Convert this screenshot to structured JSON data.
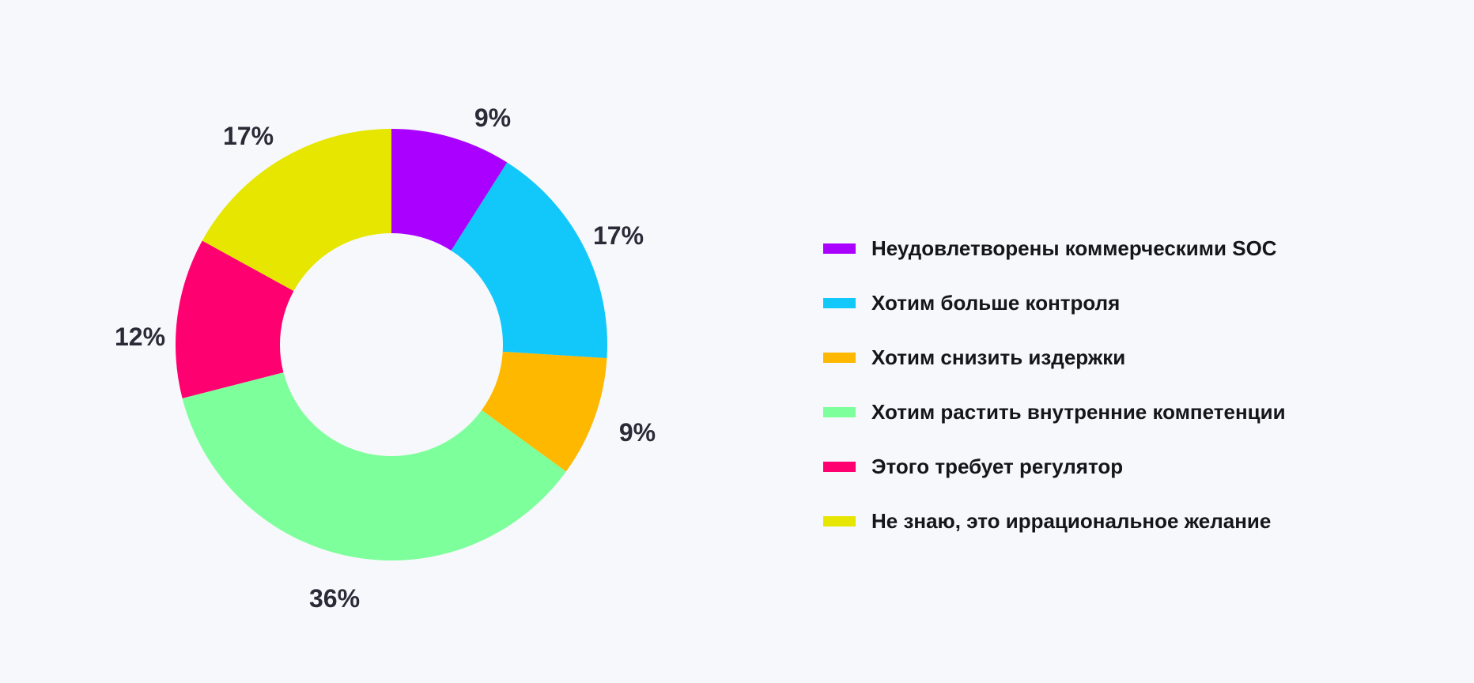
{
  "chart_data": {
    "type": "pie",
    "variant": "donut",
    "categories": [
      "Неудовлетворены коммерческими SOC",
      "Хотим больше контроля",
      "Хотим снизить издержки",
      "Хотим растить внутренние компетенции",
      "Этого требует регулятор",
      "Не знаю, это иррациональное желание"
    ],
    "values": [
      9,
      17,
      9,
      36,
      12,
      17
    ],
    "labels": [
      "9%",
      "17%",
      "9%",
      "36%",
      "12%",
      "17%"
    ],
    "colors": [
      "#aa00ff",
      "#12c8fb",
      "#ffb800",
      "#7dff9b",
      "#ff0071",
      "#e6e600"
    ],
    "legend_placement": "right"
  }
}
